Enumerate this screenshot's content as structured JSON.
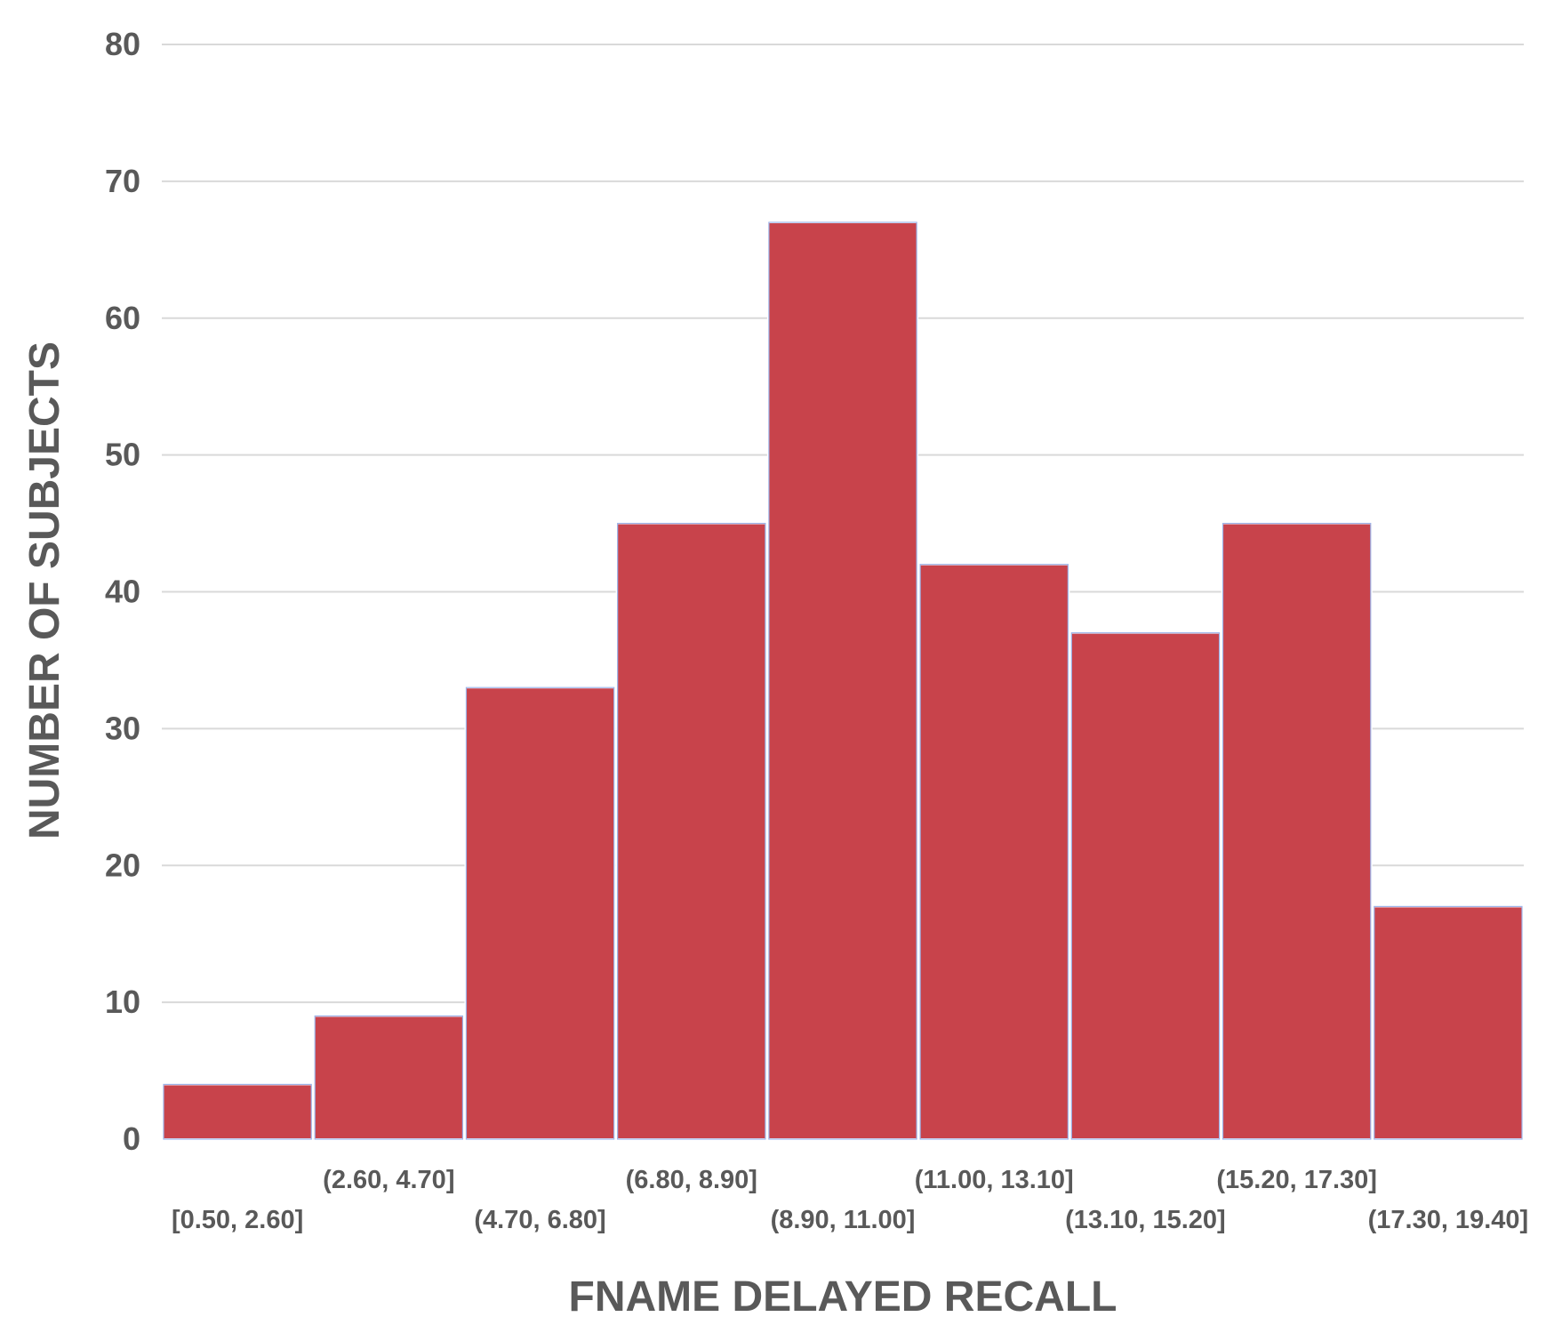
{
  "chart_data": {
    "type": "bar",
    "title": "",
    "xlabel": "FNAME DELAYED RECALL",
    "ylabel": "NUMBER OF SUBJECTS",
    "categories": [
      "[0.50, 2.60]",
      "(2.60, 4.70]",
      "(4.70, 6.80]",
      "(6.80, 8.90]",
      "(8.90, 11.00]",
      "(11.00, 13.10]",
      "(13.10, 15.20]",
      "(15.20, 17.30]",
      "(17.30, 19.40]"
    ],
    "values": [
      4,
      9,
      33,
      45,
      67,
      42,
      37,
      45,
      17
    ],
    "ylim": [
      0,
      80
    ],
    "yticks": [
      0,
      10,
      20,
      30,
      40,
      50,
      60,
      70,
      80
    ],
    "grid": true,
    "legend": "none",
    "colors": {
      "bar": "#c8434b",
      "bar_outline": "#9db3e8",
      "grid": "#d9d9d9",
      "text": "#595959"
    }
  }
}
